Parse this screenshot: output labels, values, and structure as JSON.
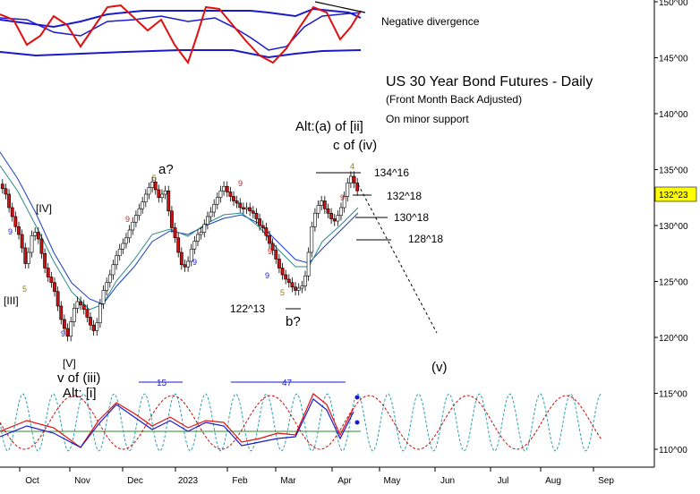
{
  "chart_data": {
    "type": "candlestick",
    "title": "US 30 Year Bond Futures - Daily",
    "subtitle": "(Front Month Back Adjusted)",
    "note": "On minor support",
    "top_panel_label": "Negative divergence",
    "y_ticks": [
      "150^00",
      "145^00",
      "140^00",
      "135^00",
      "130^00",
      "125^00",
      "120^00",
      "115^00",
      "110^00"
    ],
    "y_tick_values": [
      150,
      145,
      140,
      135,
      130,
      125,
      120,
      115,
      110
    ],
    "x_ticks": [
      "Oct",
      "Nov",
      "Dec",
      "2023",
      "Feb",
      "Mar",
      "Apr",
      "May",
      "Jun",
      "Jul",
      "Aug",
      "Sep"
    ],
    "current_price": "132^23",
    "levels": [
      {
        "label": "134^16",
        "value": 134.5
      },
      {
        "label": "132^18",
        "value": 132.56
      },
      {
        "label": "130^18",
        "value": 130.56
      },
      {
        "label": "128^18",
        "value": 128.56
      },
      {
        "label": "122^13",
        "value": 122.4
      }
    ],
    "wave_labels": [
      "[IV]",
      "[III]",
      "[V]",
      "v of (iii)",
      "Alt: [i]",
      "a?",
      "b?",
      "c of (iv)",
      "Alt:(a) of [ii]",
      "(v)"
    ],
    "count_marks": [
      "9",
      "5",
      "9",
      "9",
      "5",
      "9",
      "9",
      "9",
      "9",
      "5",
      "9",
      "4"
    ],
    "cycle_labels": [
      "15",
      "47"
    ],
    "closes": [
      133.3,
      132.8,
      131.6,
      130.8,
      129.9,
      129.2,
      128.0,
      126.6,
      127.6,
      129.1,
      129.4,
      128.8,
      127.5,
      126.2,
      125.4,
      124.9,
      124.1,
      122.8,
      121.6,
      120.8,
      120.1,
      121.4,
      122.6,
      123.2,
      122.9,
      122.5,
      121.8,
      121.1,
      120.6,
      121.3,
      123.0,
      124.2,
      124.9,
      125.6,
      126.5,
      127.3,
      127.9,
      128.4,
      128.9,
      129.6,
      130.3,
      130.9,
      131.5,
      132.1,
      132.8,
      133.4,
      133.9,
      133.2,
      132.5,
      132.8,
      133.1,
      131.3,
      129.8,
      128.9,
      127.6,
      126.5,
      126.3,
      126.8,
      127.9,
      128.6,
      129.2,
      129.4,
      130.1,
      130.8,
      131.2,
      131.9,
      132.5,
      133.1,
      133.5,
      133.0,
      132.6,
      132.2,
      132.0,
      131.6,
      131.5,
      131.6,
      131.3,
      131.1,
      130.6,
      130.0,
      129.8,
      129.1,
      128.4,
      127.8,
      127.0,
      126.2,
      125.6,
      125.2,
      124.9,
      124.5,
      124.2,
      124.4,
      124.6,
      125.5,
      127.6,
      129.9,
      131.1,
      131.8,
      132.2,
      131.5,
      131.1,
      130.6,
      130.4,
      130.9,
      131.6,
      132.6,
      133.8,
      134.4,
      133.8,
      133.1
    ]
  }
}
